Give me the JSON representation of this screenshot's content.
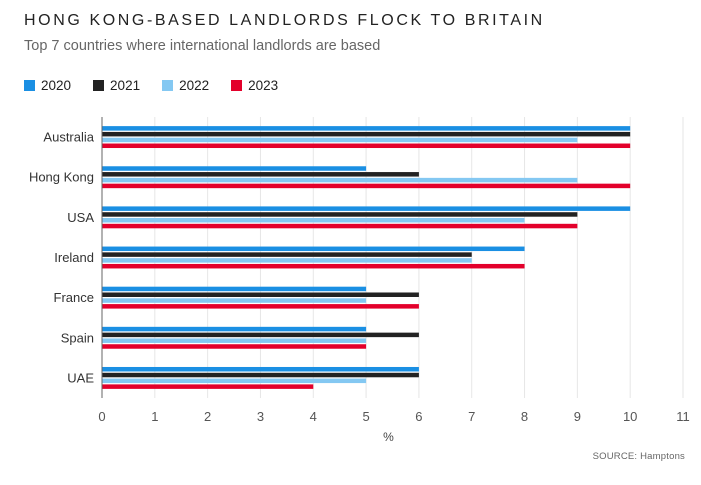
{
  "header": {
    "title": "HONG KONG-BASED LANDLORDS FLOCK TO BRITAIN",
    "subtitle": "Top 7 countries where international landlords are based"
  },
  "source": "SOURCE: Hamptons",
  "chart_data": {
    "type": "bar",
    "orientation": "horizontal",
    "categories": [
      "Australia",
      "Hong Kong",
      "USA",
      "Ireland",
      "France",
      "Spain",
      "UAE"
    ],
    "series": [
      {
        "name": "2020",
        "color": "#1a8fe3",
        "values": [
          10,
          5,
          10,
          8,
          5,
          5,
          6
        ]
      },
      {
        "name": "2021",
        "color": "#222222",
        "values": [
          10,
          6,
          9,
          7,
          6,
          6,
          6
        ]
      },
      {
        "name": "2022",
        "color": "#84c8f2",
        "values": [
          9,
          9,
          8,
          7,
          5,
          5,
          5
        ]
      },
      {
        "name": "2023",
        "color": "#e3002b",
        "values": [
          10,
          10,
          9,
          8,
          6,
          5,
          4
        ]
      }
    ],
    "xlabel": "%",
    "xlim": [
      0,
      11
    ],
    "xticks": [
      "0",
      "1",
      "2",
      "3",
      "4",
      "5",
      "6",
      "7",
      "8",
      "9",
      "10",
      "11"
    ],
    "grid": "vertical",
    "legend": "top-left"
  }
}
